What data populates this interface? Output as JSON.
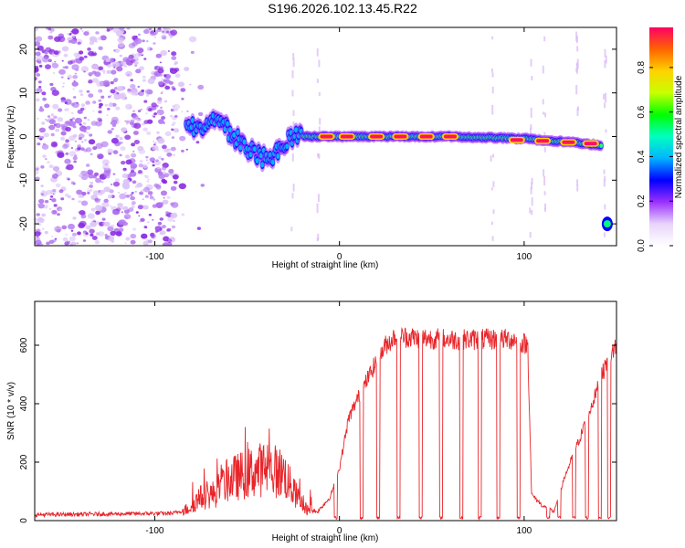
{
  "title": "S196.2026.102.13.45.R22",
  "chart_data": [
    {
      "type": "heatmap",
      "name": "spectrogram",
      "xlabel": "Height of straight line (km)",
      "ylabel": "Frequency (Hz)",
      "xlim": [
        -165,
        150
      ],
      "ylim": [
        -25,
        25
      ],
      "xticks": [
        -100,
        0,
        100
      ],
      "xtick_labels": [
        "-100",
        "0",
        "100"
      ],
      "yticks": [
        -20,
        -10,
        0,
        10,
        20
      ],
      "ytick_labels": [
        "-20",
        "-10",
        "0",
        "10",
        "20"
      ],
      "noise_region_x": [
        -165,
        -88
      ],
      "ridge": [
        {
          "x": -83,
          "y": 1.5
        },
        {
          "x": -75,
          "y": 2.5
        },
        {
          "x": -68,
          "y": 3.5
        },
        {
          "x": -60,
          "y": 1.5
        },
        {
          "x": -52,
          "y": -2
        },
        {
          "x": -45,
          "y": -4.5
        },
        {
          "x": -38,
          "y": -5.5
        },
        {
          "x": -32,
          "y": -3
        },
        {
          "x": -26,
          "y": 0
        },
        {
          "x": -18,
          "y": 0
        },
        {
          "x": -10,
          "y": 0
        },
        {
          "x": 0,
          "y": 0
        },
        {
          "x": 20,
          "y": 0
        },
        {
          "x": 60,
          "y": 0
        },
        {
          "x": 100,
          "y": -0.5
        },
        {
          "x": 130,
          "y": -1.5
        },
        {
          "x": 142,
          "y": -2
        }
      ],
      "hotspots": [
        {
          "x": -7,
          "y": 0
        },
        {
          "x": 4,
          "y": 0
        },
        {
          "x": 20,
          "y": 0
        },
        {
          "x": 33,
          "y": 0
        },
        {
          "x": 47,
          "y": 0
        },
        {
          "x": 60,
          "y": 0
        },
        {
          "x": 96,
          "y": -0.8
        },
        {
          "x": 110,
          "y": -1
        },
        {
          "x": 124,
          "y": -1.3
        },
        {
          "x": 136,
          "y": -1.6
        }
      ],
      "isolated_blob": {
        "x": 145,
        "y": -20
      }
    },
    {
      "type": "colorbar",
      "name": "colorbar",
      "label": "Normalized spectral amplitude",
      "range": [
        0,
        0.98
      ],
      "ticks": [
        0,
        0.2,
        0.4,
        0.6,
        0.8
      ],
      "tick_labels": [
        "0.0",
        "0.2",
        "0.4",
        "0.6",
        "0.8"
      ],
      "colors": [
        "#ffffff",
        "#e8d4fa",
        "#9b30ff",
        "#0000ff",
        "#00b4ff",
        "#00ffc0",
        "#00ff00",
        "#c8ff00",
        "#ffd200",
        "#ff6400",
        "#ff0064"
      ]
    },
    {
      "type": "line",
      "name": "snr",
      "xlabel": "Height of straight line (km)",
      "ylabel": "SNR (10 * v/v)",
      "xlim": [
        -165,
        150
      ],
      "ylim": [
        0,
        750
      ],
      "xticks": [
        -100,
        0,
        100
      ],
      "xtick_labels": [
        "-100",
        "0",
        "100"
      ],
      "yticks": [
        0,
        200,
        400,
        600
      ],
      "ytick_labels": [
        "0",
        "200",
        "400",
        "600"
      ],
      "color": "#e8252a",
      "envelope": [
        {
          "x": -165,
          "y": 20
        },
        {
          "x": -90,
          "y": 25
        },
        {
          "x": -82,
          "y": 40
        },
        {
          "x": -75,
          "y": 80
        },
        {
          "x": -68,
          "y": 90
        },
        {
          "x": -60,
          "y": 140
        },
        {
          "x": -50,
          "y": 160
        },
        {
          "x": -40,
          "y": 180
        },
        {
          "x": -30,
          "y": 160
        },
        {
          "x": -25,
          "y": 100
        },
        {
          "x": -18,
          "y": 40
        },
        {
          "x": -12,
          "y": 30
        },
        {
          "x": -5,
          "y": 80
        },
        {
          "x": 0,
          "y": 180
        },
        {
          "x": 5,
          "y": 350
        },
        {
          "x": 10,
          "y": 420
        },
        {
          "x": 18,
          "y": 520
        },
        {
          "x": 25,
          "y": 600
        },
        {
          "x": 30,
          "y": 630
        },
        {
          "x": 60,
          "y": 620
        },
        {
          "x": 95,
          "y": 620
        },
        {
          "x": 102,
          "y": 600
        },
        {
          "x": 104,
          "y": 90
        },
        {
          "x": 110,
          "y": 50
        },
        {
          "x": 116,
          "y": 30
        },
        {
          "x": 122,
          "y": 150
        },
        {
          "x": 130,
          "y": 280
        },
        {
          "x": 138,
          "y": 420
        },
        {
          "x": 145,
          "y": 550
        },
        {
          "x": 150,
          "y": 600
        }
      ],
      "dropouts_x": [
        -2,
        12,
        21,
        32,
        44,
        55,
        66,
        76,
        86,
        97,
        113,
        119,
        127,
        134,
        141,
        146
      ]
    }
  ]
}
